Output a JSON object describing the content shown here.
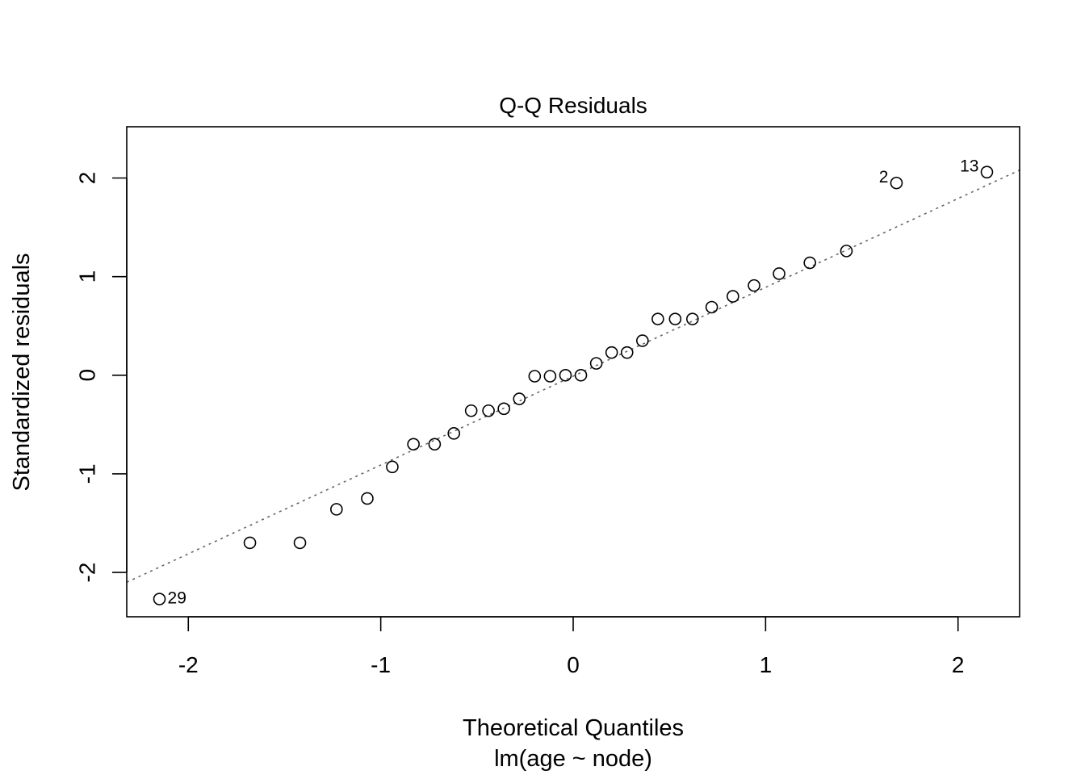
{
  "chart_data": {
    "type": "scatter",
    "title": "Q-Q Residuals",
    "xlabel": "Theoretical Quantiles",
    "subtitle": "lm(age ~ node)",
    "ylabel": "Standardized residuals",
    "xlim": [
      -2.32,
      2.32
    ],
    "ylim": [
      -2.45,
      2.52
    ],
    "xticks": [
      -2,
      -1,
      0,
      1,
      2
    ],
    "yticks": [
      -2,
      -1,
      0,
      1,
      2
    ],
    "xtick_labels": [
      "-2",
      "-1",
      "0",
      "1",
      "2"
    ],
    "ytick_labels": [
      "-2",
      "-1",
      "0",
      "1",
      "2"
    ],
    "grid": false,
    "reference_line": {
      "style": "dotted",
      "color": "#666666",
      "x": [
        -2.32,
        2.32
      ],
      "y": [
        -2.1,
        2.08
      ]
    },
    "marker": "open-circle",
    "points": [
      {
        "x": -2.15,
        "y": -2.27,
        "label": "29"
      },
      {
        "x": -1.68,
        "y": -1.7
      },
      {
        "x": -1.42,
        "y": -1.7
      },
      {
        "x": -1.23,
        "y": -1.36
      },
      {
        "x": -1.07,
        "y": -1.25
      },
      {
        "x": -0.94,
        "y": -0.93
      },
      {
        "x": -0.83,
        "y": -0.7
      },
      {
        "x": -0.72,
        "y": -0.7
      },
      {
        "x": -0.62,
        "y": -0.59
      },
      {
        "x": -0.53,
        "y": -0.36
      },
      {
        "x": -0.44,
        "y": -0.36
      },
      {
        "x": -0.36,
        "y": -0.34
      },
      {
        "x": -0.28,
        "y": -0.24
      },
      {
        "x": -0.2,
        "y": -0.01
      },
      {
        "x": -0.12,
        "y": -0.01
      },
      {
        "x": -0.04,
        "y": 0.0
      },
      {
        "x": 0.04,
        "y": 0.0
      },
      {
        "x": 0.12,
        "y": 0.12
      },
      {
        "x": 0.2,
        "y": 0.23
      },
      {
        "x": 0.28,
        "y": 0.23
      },
      {
        "x": 0.36,
        "y": 0.35
      },
      {
        "x": 0.44,
        "y": 0.57
      },
      {
        "x": 0.53,
        "y": 0.57
      },
      {
        "x": 0.62,
        "y": 0.57
      },
      {
        "x": 0.72,
        "y": 0.69
      },
      {
        "x": 0.83,
        "y": 0.8
      },
      {
        "x": 0.94,
        "y": 0.91
      },
      {
        "x": 1.07,
        "y": 1.03
      },
      {
        "x": 1.23,
        "y": 1.14
      },
      {
        "x": 1.42,
        "y": 1.26
      },
      {
        "x": 1.68,
        "y": 1.95,
        "label": "2"
      },
      {
        "x": 2.15,
        "y": 2.06,
        "label": "13"
      }
    ]
  }
}
